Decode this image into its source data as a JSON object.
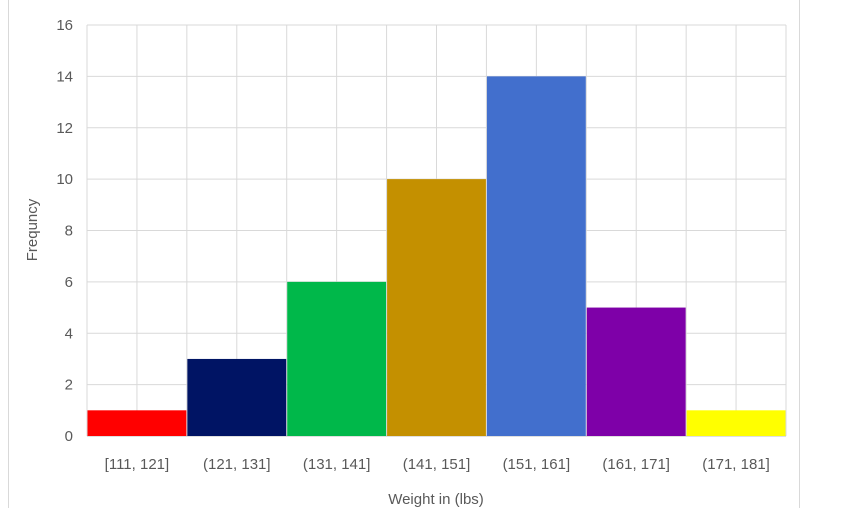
{
  "chart_data": {
    "type": "bar",
    "title": "",
    "xlabel": "Weight in (lbs)",
    "ylabel": "Frequncy",
    "categories": [
      "[111, 121]",
      "(121, 131]",
      "(131, 141]",
      "(141, 151]",
      "(151, 161]",
      "(161, 171]",
      "(171, 181]"
    ],
    "values": [
      1,
      3,
      6,
      10,
      14,
      5,
      1
    ],
    "colors": [
      "#ff0000",
      "#001464",
      "#00b84a",
      "#c49000",
      "#426fcd",
      "#7e00a8",
      "#ffff00"
    ],
    "ylim": [
      0,
      16
    ],
    "yticks": [
      "0",
      "2",
      "4",
      "6",
      "8",
      "10",
      "12",
      "14",
      "16"
    ],
    "grid": true,
    "legend": "none"
  }
}
